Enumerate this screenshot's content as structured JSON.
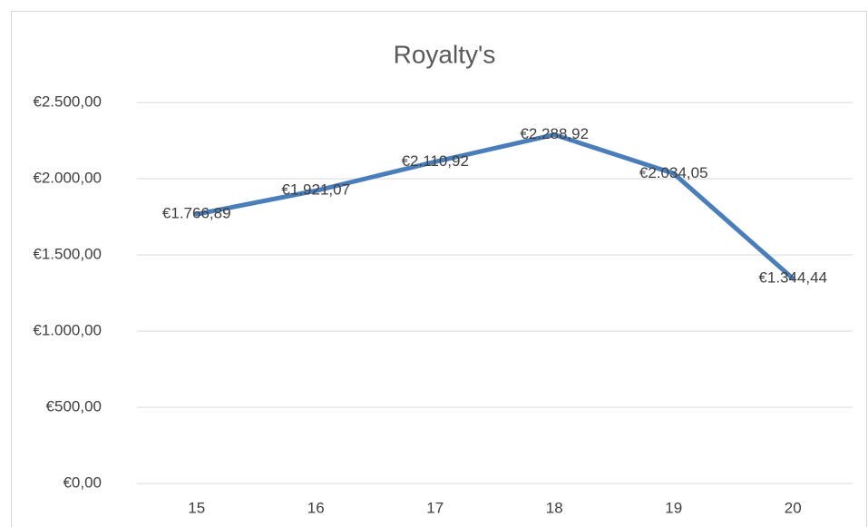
{
  "chart_data": {
    "type": "line",
    "title": "Royalty's",
    "categories": [
      "15",
      "16",
      "17",
      "18",
      "19",
      "20"
    ],
    "series": [
      {
        "name": "Royalty's",
        "color": "#4a7ebb",
        "values": [
          1766.89,
          1921.07,
          2110.92,
          2288.92,
          2034.05,
          1344.44
        ],
        "value_labels": [
          "€1.766,89",
          "€1.921,07",
          "€2.110,92",
          "€2.288,92",
          "€2.034,05",
          "€1.344,44"
        ]
      }
    ],
    "ylim": [
      0,
      2500
    ],
    "yticks": [
      {
        "value": 0,
        "label": "€0,00"
      },
      {
        "value": 500,
        "label": "€500,00"
      },
      {
        "value": 1000,
        "label": "€1.000,00"
      },
      {
        "value": 1500,
        "label": "€1.500,00"
      },
      {
        "value": 2000,
        "label": "€2.000,00"
      },
      {
        "value": 2500,
        "label": "€2.500,00"
      }
    ],
    "grid": true
  }
}
